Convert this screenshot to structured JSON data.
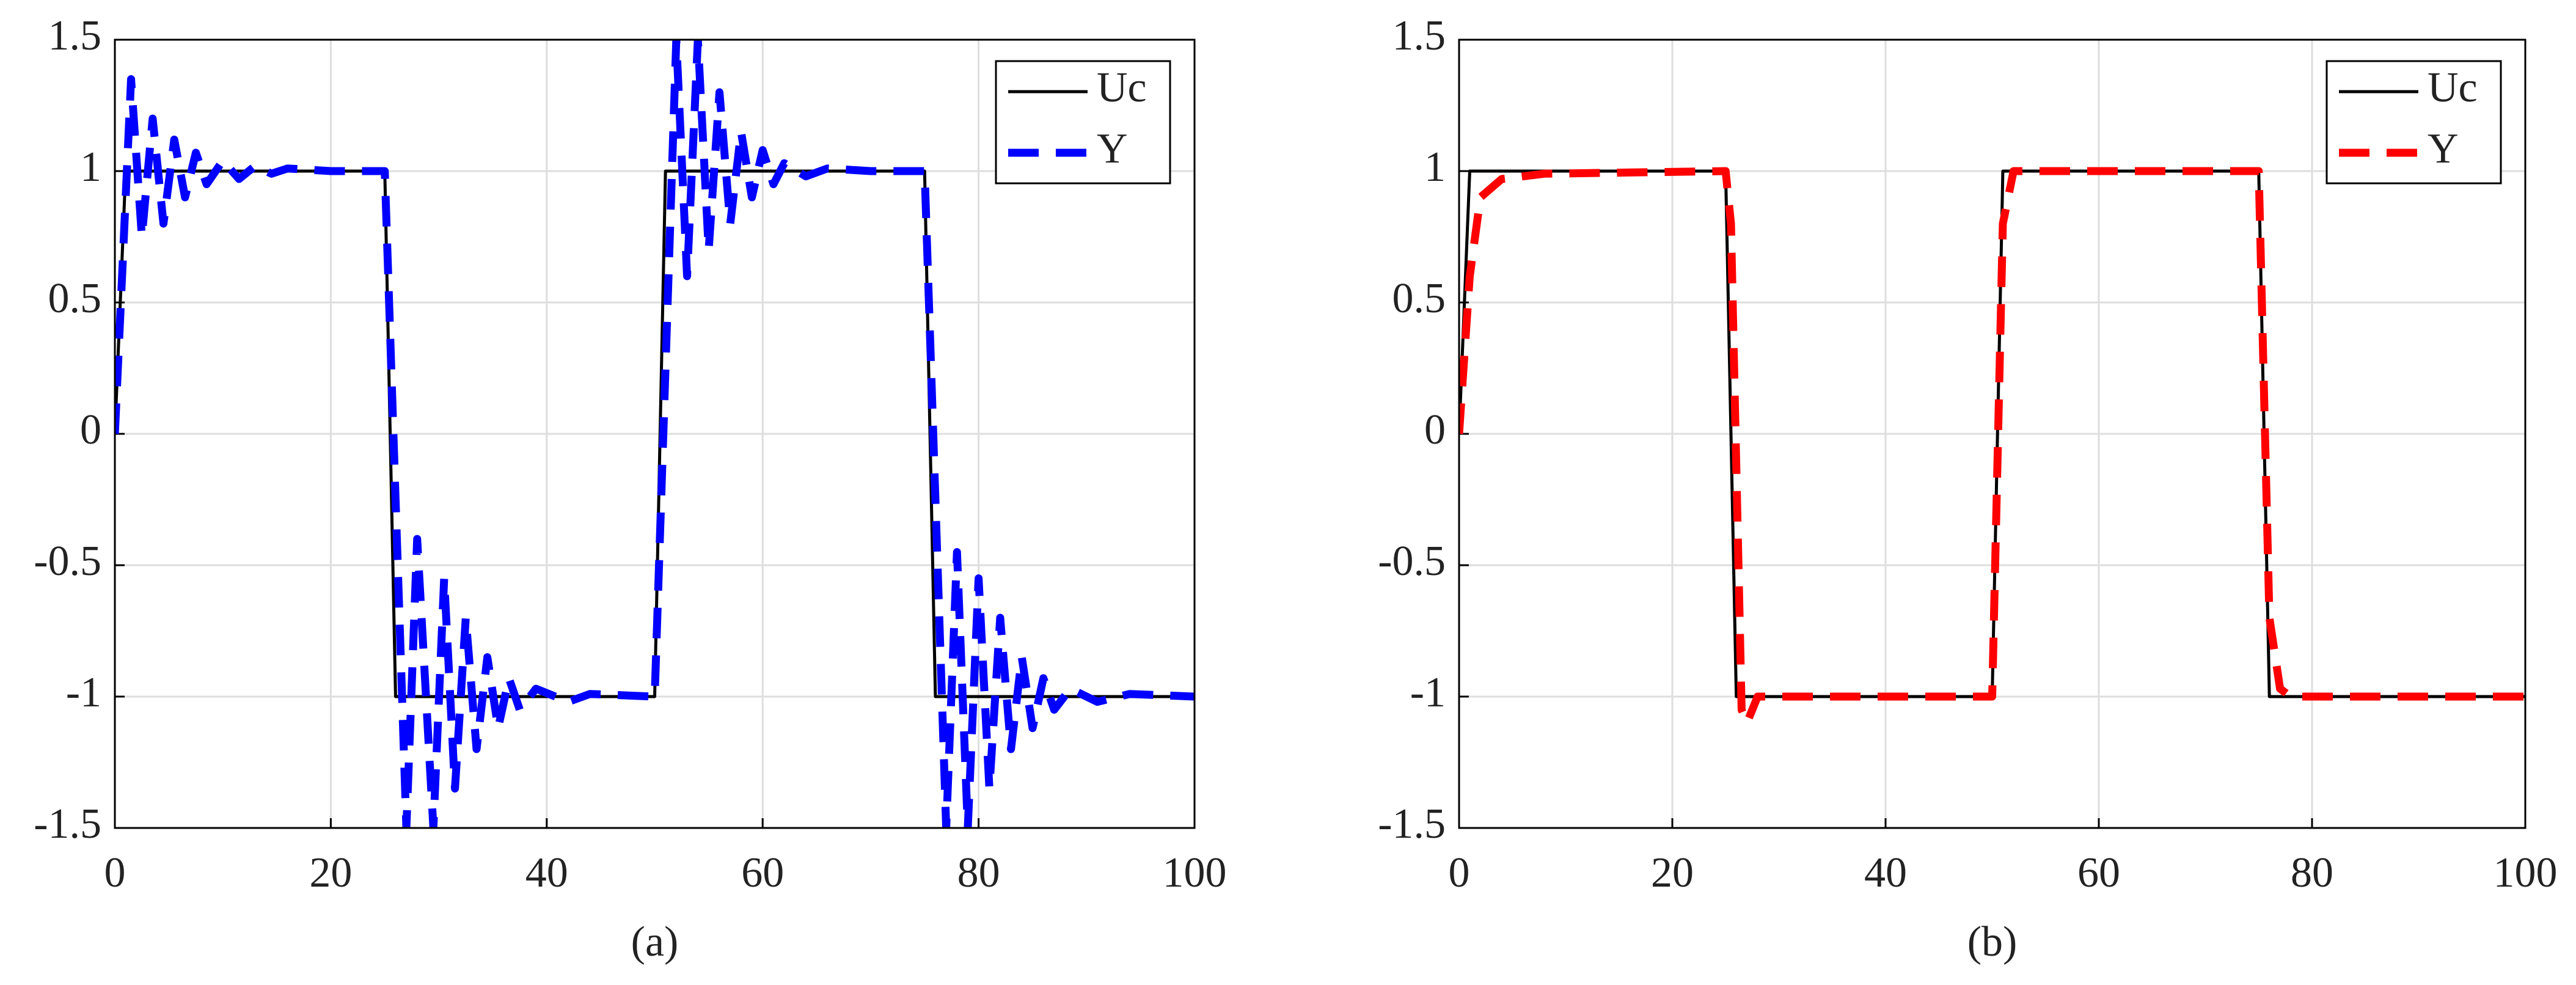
{
  "chart_data": [
    {
      "type": "line",
      "caption": "(a)",
      "series": [
        {
          "name": "Uc",
          "color": "#000000",
          "dashed": false,
          "x": [
            0,
            1,
            25,
            26,
            50,
            51,
            75,
            76,
            100
          ],
          "values": [
            0,
            1,
            1,
            -1,
            -1,
            1,
            1,
            -1,
            -1
          ]
        },
        {
          "name": "Y",
          "color": "#0000ff",
          "dashed": true,
          "x": [
            0,
            1.5,
            2.5,
            3.5,
            4.5,
            5.5,
            6.5,
            7.5,
            8.5,
            10,
            11.5,
            13,
            14.5,
            16,
            20,
            25,
            27,
            28,
            29.5,
            30.5,
            31.5,
            32.5,
            33.5,
            34.5,
            35.5,
            36.5,
            37.5,
            39,
            42,
            44,
            50,
            52,
            53,
            54,
            55,
            56,
            57,
            58,
            59,
            60,
            61,
            62,
            64,
            66,
            70,
            75,
            77,
            78,
            79,
            80,
            81,
            82,
            83,
            84,
            85,
            86,
            87,
            88.5,
            91,
            94,
            100
          ],
          "values": [
            0,
            1.35,
            0.75,
            1.2,
            0.8,
            1.12,
            0.9,
            1.07,
            0.95,
            1.04,
            0.97,
            1.02,
            0.99,
            1.01,
            1,
            1,
            -1.5,
            -0.4,
            -1.5,
            -0.55,
            -1.35,
            -0.7,
            -1.2,
            -0.85,
            -1.12,
            -0.93,
            -1.05,
            -0.97,
            -1.02,
            -0.99,
            -1,
            1.5,
            0.6,
            1.5,
            0.7,
            1.3,
            0.8,
            1.15,
            0.9,
            1.08,
            0.95,
            1.03,
            0.98,
            1.01,
            1,
            1,
            -1.5,
            -0.45,
            -1.5,
            -0.55,
            -1.35,
            -0.7,
            -1.2,
            -0.85,
            -1.12,
            -0.93,
            -1.05,
            -0.97,
            -1.02,
            -0.99,
            -1
          ]
        }
      ],
      "xlim": [
        0,
        100
      ],
      "xticks": [
        0,
        20,
        40,
        60,
        80,
        100
      ],
      "ylim": [
        -1.5,
        1.5
      ],
      "yticks": [
        -1.5,
        -1,
        -0.5,
        0,
        0.5,
        1,
        1.5
      ],
      "grid": true,
      "legend": "upper right"
    },
    {
      "type": "line",
      "caption": "(b)",
      "series": [
        {
          "name": "Uc",
          "color": "#000000",
          "dashed": false,
          "x": [
            0,
            1,
            25,
            26,
            50,
            51,
            75,
            76,
            100
          ],
          "values": [
            0,
            1,
            1,
            -1,
            -1,
            1,
            1,
            -1,
            -1
          ]
        },
        {
          "name": "Y",
          "color": "#ff0000",
          "dashed": true,
          "x": [
            0,
            1,
            2,
            4,
            8,
            25,
            25.5,
            26.5,
            27,
            28,
            50,
            51,
            52,
            75,
            76,
            77,
            78,
            100
          ],
          "values": [
            0,
            0.6,
            0.9,
            0.97,
            0.99,
            1,
            0.8,
            -1.05,
            -1.1,
            -1,
            -1,
            0.8,
            1,
            1,
            -0.7,
            -0.97,
            -1,
            -1
          ]
        }
      ],
      "xlim": [
        0,
        100
      ],
      "xticks": [
        0,
        20,
        40,
        60,
        80,
        100
      ],
      "ylim": [
        -1.5,
        1.5
      ],
      "yticks": [
        -1.5,
        -1,
        -0.5,
        0,
        0.5,
        1,
        1.5
      ],
      "grid": true,
      "legend": "upper right"
    }
  ]
}
